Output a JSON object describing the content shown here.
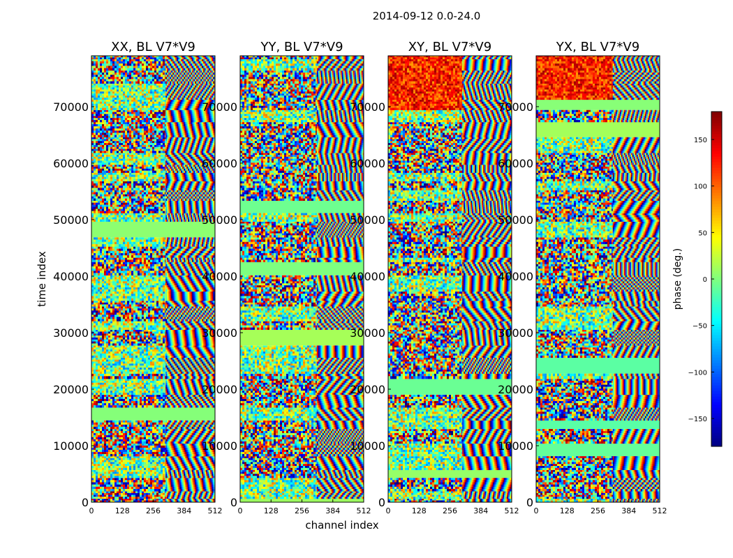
{
  "figure": {
    "suptitle": "2014-09-12 0.0-24.0"
  },
  "colorbar": {
    "label": "phase (deg.)",
    "range": [
      -180,
      180
    ],
    "ticks": [
      150,
      100,
      50,
      0,
      -50,
      -100,
      -150
    ],
    "tick_labels": [
      "150",
      "100",
      "50",
      "0",
      "−50",
      "−100",
      "−150"
    ],
    "colormap": [
      "#00007f",
      "#0000ff",
      "#007fff",
      "#00ffff",
      "#7fff7f",
      "#ffff00",
      "#ff7f00",
      "#ff0000",
      "#7f0000"
    ]
  },
  "chart_data": [
    {
      "type": "heatmap",
      "title": "XX, BL V7*V9",
      "xlabel": "",
      "ylabel": "time index",
      "xlim": [
        0,
        512
      ],
      "ylim": [
        0,
        79000
      ],
      "xticks": [
        0,
        128,
        256,
        384,
        512
      ],
      "xtick_labels": [
        "0",
        "128",
        "256",
        "384",
        "512"
      ],
      "yticks": [
        0,
        10000,
        20000,
        30000,
        40000,
        50000,
        60000,
        70000
      ],
      "ytick_labels": [
        "0",
        "10000",
        "20000",
        "30000",
        "40000",
        "50000",
        "60000",
        "70000"
      ],
      "value": "phase (deg.)"
    },
    {
      "type": "heatmap",
      "title": "YY, BL V7*V9",
      "xlabel": "channel index",
      "ylabel": "",
      "xlim": [
        0,
        512
      ],
      "ylim": [
        0,
        79000
      ],
      "xticks": [
        0,
        128,
        256,
        384,
        512
      ],
      "xtick_labels": [
        "0",
        "128",
        "256",
        "384",
        "512"
      ],
      "yticks": [
        0,
        10000,
        20000,
        30000,
        40000,
        50000,
        60000,
        70000
      ],
      "ytick_labels": [
        "0",
        "10000",
        "20000",
        "30000",
        "40000",
        "50000",
        "60000",
        "70000"
      ],
      "value": "phase (deg.)"
    },
    {
      "type": "heatmap",
      "title": "XY, BL V7*V9",
      "xlabel": "",
      "ylabel": "",
      "xlim": [
        0,
        512
      ],
      "ylim": [
        0,
        79000
      ],
      "xticks": [
        0,
        128,
        256,
        384,
        512
      ],
      "xtick_labels": [
        "0",
        "128",
        "256",
        "384",
        "512"
      ],
      "yticks": [
        0,
        10000,
        20000,
        30000,
        40000,
        50000,
        60000,
        70000
      ],
      "ytick_labels": [
        "0",
        "10000",
        "20000",
        "30000",
        "40000",
        "50000",
        "60000",
        "70000"
      ],
      "value": "phase (deg.)"
    },
    {
      "type": "heatmap",
      "title": "YX, BL V7*V9",
      "xlabel": "",
      "ylabel": "",
      "xlim": [
        0,
        512
      ],
      "ylim": [
        0,
        79000
      ],
      "xticks": [
        0,
        128,
        256,
        384,
        512
      ],
      "xtick_labels": [
        "0",
        "128",
        "256",
        "384",
        "512"
      ],
      "yticks": [
        0,
        10000,
        20000,
        30000,
        40000,
        50000,
        60000,
        70000
      ],
      "ytick_labels": [
        "0",
        "10000",
        "20000",
        "30000",
        "40000",
        "50000",
        "60000",
        "70000"
      ],
      "value": "phase (deg.)"
    }
  ]
}
